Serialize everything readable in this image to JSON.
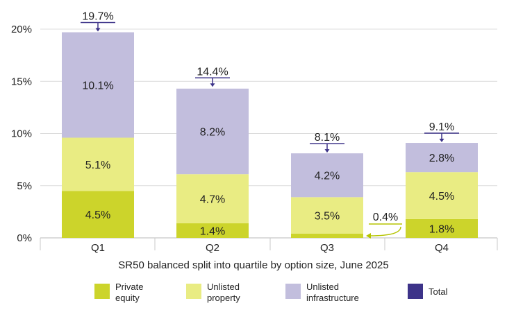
{
  "chart_data": {
    "type": "bar",
    "stacked": true,
    "xlabel": "SR50 balanced split into quartile by option size, June 2025",
    "ylabel": "",
    "ylim": [
      0,
      20
    ],
    "yticks": [
      "0%",
      "5%",
      "10%",
      "15%",
      "20%"
    ],
    "ytick_values": [
      0,
      5,
      10,
      15,
      20
    ],
    "grid": true,
    "legend_placement": "bottom",
    "categories": [
      "Q1",
      "Q2",
      "Q3",
      "Q4"
    ],
    "series": [
      {
        "name": "Private equity",
        "legend_lines": [
          "Private",
          "equity"
        ],
        "color": "#ccd42b",
        "values": [
          4.5,
          1.4,
          0.4,
          1.8
        ],
        "labels": [
          "4.5%",
          "1.4%",
          "0.4%",
          "1.8%"
        ]
      },
      {
        "name": "Unlisted property",
        "legend_lines": [
          "Unlisted",
          "property"
        ],
        "color": "#e9ec83",
        "values": [
          5.1,
          4.7,
          3.5,
          4.5
        ],
        "labels": [
          "5.1%",
          "4.7%",
          "3.5%",
          "4.5%"
        ]
      },
      {
        "name": "Unlisted infrastructure",
        "legend_lines": [
          "Unlisted",
          "infrastructure"
        ],
        "color": "#c2bedd",
        "values": [
          10.1,
          8.2,
          4.2,
          2.8
        ],
        "labels": [
          "10.1%",
          "8.2%",
          "4.2%",
          "2.8%"
        ]
      }
    ],
    "totals": {
      "name": "Total",
      "legend_lines": [
        "Total"
      ],
      "color": "#3d3389",
      "values": [
        19.7,
        14.4,
        8.1,
        9.1
      ],
      "labels": [
        "19.7%",
        "14.4%",
        "8.1%",
        "9.1%"
      ]
    },
    "annotation_color": "#b5c400"
  }
}
